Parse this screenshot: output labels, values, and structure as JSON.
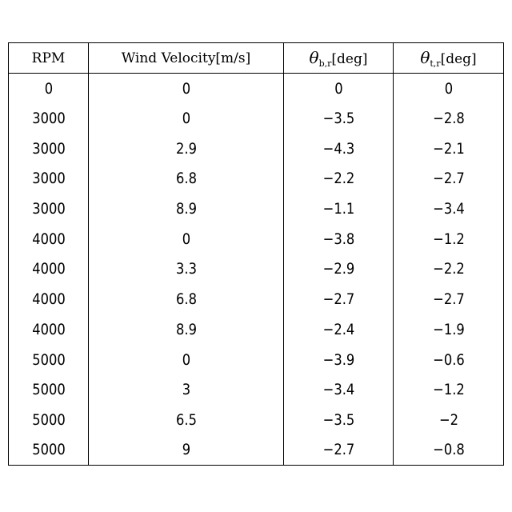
{
  "table": {
    "headers": {
      "rpm": "RPM",
      "wind": "Wind Velocity[m/s]",
      "theta_b": {
        "symbol": "θ",
        "subscript": "b,r",
        "unit": "[deg]"
      },
      "theta_t": {
        "symbol": "θ",
        "subscript": "t,r",
        "unit": "[deg]"
      }
    },
    "rows": [
      [
        "0",
        "0",
        "0",
        "0"
      ],
      [
        "3000",
        "0",
        "−3.5",
        "−2.8"
      ],
      [
        "3000",
        "2.9",
        "−4.3",
        "−2.1"
      ],
      [
        "3000",
        "6.8",
        "−2.2",
        "−2.7"
      ],
      [
        "3000",
        "8.9",
        "−1.1",
        "−3.4"
      ],
      [
        "4000",
        "0",
        "−3.8",
        "−1.2"
      ],
      [
        "4000",
        "3.3",
        "−2.9",
        "−2.2"
      ],
      [
        "4000",
        "6.8",
        "−2.7",
        "−2.7"
      ],
      [
        "4000",
        "8.9",
        "−2.4",
        "−1.9"
      ],
      [
        "5000",
        "0",
        "−3.9",
        "−0.6"
      ],
      [
        "5000",
        "3",
        "−3.4",
        "−1.2"
      ],
      [
        "5000",
        "6.5",
        "−3.5",
        "−2"
      ],
      [
        "5000",
        "9",
        "−2.7",
        "−0.8"
      ]
    ]
  }
}
